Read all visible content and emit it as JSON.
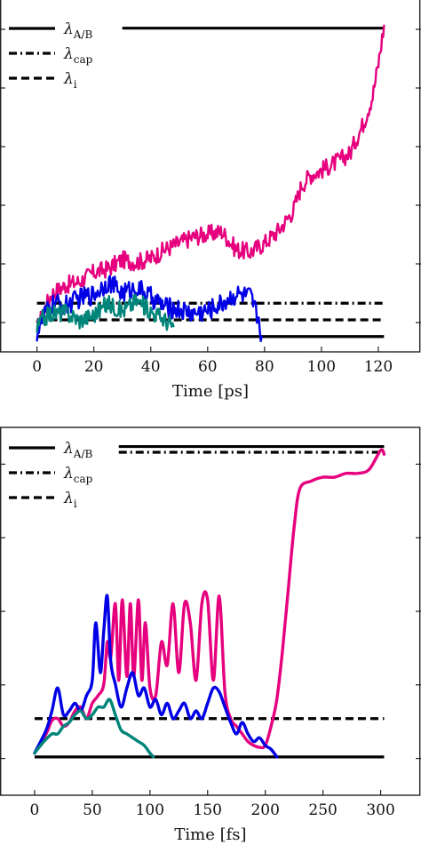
{
  "chart_data": [
    {
      "type": "line",
      "xlabel": "Time [ps]",
      "ylabel": "",
      "xlim": [
        -13,
        135
      ],
      "ylim": [
        0,
        27.5
      ],
      "xticks": [
        0,
        20,
        40,
        60,
        80,
        100,
        120
      ],
      "xtick_labels": [
        "0",
        "20",
        "40",
        "60",
        "80",
        "100",
        "120"
      ],
      "ytick_count": 6,
      "legend": {
        "position": "top-left",
        "entries": [
          {
            "symbol": "λ",
            "sub": "A/B",
            "style": "solid"
          },
          {
            "symbol": "λ",
            "sub": "cap",
            "style": "dashdot"
          },
          {
            "symbol": "λ",
            "sub": "i",
            "style": "dashed"
          }
        ]
      },
      "reference_lines": [
        {
          "legend_index": 0,
          "style": "solid",
          "color": "#000000",
          "segments": [
            [
              0,
              1.2,
              122,
              1.2
            ],
            [
              30,
              25.3,
              122,
              25.3
            ]
          ]
        },
        {
          "legend_index": 1,
          "style": "dashdot",
          "color": "#000000",
          "segments": [
            [
              0,
              3.8,
              122,
              3.8
            ]
          ]
        },
        {
          "legend_index": 2,
          "style": "dashed",
          "color": "#000000",
          "segments": [
            [
              0,
              2.5,
              122,
              2.5
            ]
          ]
        }
      ],
      "series": [
        {
          "color": "#e6007e",
          "noise": 0.7,
          "x": [
            0,
            3,
            5,
            10,
            15,
            20,
            25,
            30,
            35,
            40,
            45,
            50,
            55,
            60,
            65,
            70,
            75,
            80,
            85,
            90,
            93,
            96,
            100,
            105,
            110,
            115,
            118,
            120,
            122
          ],
          "y": [
            1.8,
            3.5,
            4.5,
            5.2,
            5.5,
            6.2,
            6.5,
            7.2,
            7.0,
            7.3,
            8.0,
            8.5,
            9.0,
            9.2,
            9.4,
            8.0,
            7.8,
            8.5,
            9.5,
            11.0,
            13.0,
            13.8,
            14.2,
            14.8,
            15.5,
            18.0,
            20.0,
            22.5,
            25.5
          ]
        },
        {
          "color": "#0000e6",
          "noise": 0.8,
          "x": [
            0,
            3,
            6,
            10,
            15,
            20,
            25,
            30,
            35,
            40,
            45,
            50,
            55,
            60,
            65,
            70,
            75,
            78,
            79
          ],
          "y": [
            1.5,
            3.0,
            3.8,
            3.6,
            4.2,
            4.5,
            5.5,
            4.6,
            5.0,
            4.3,
            3.5,
            3.3,
            3.0,
            3.2,
            3.8,
            4.5,
            4.3,
            2.5,
            1.2
          ]
        },
        {
          "color": "#00857a",
          "noise": 0.7,
          "x": [
            0,
            2,
            5,
            10,
            15,
            20,
            25,
            30,
            35,
            40,
            45,
            48
          ],
          "y": [
            1.8,
            2.6,
            3.0,
            3.1,
            2.5,
            2.9,
            3.8,
            3.2,
            4.0,
            3.2,
            2.5,
            2.0
          ]
        }
      ]
    },
    {
      "type": "line",
      "xlabel": "Time [fs]",
      "ylabel": "",
      "xlim": [
        -30,
        335
      ],
      "ylim": [
        -1.0,
        8.6
      ],
      "xticks": [
        0,
        50,
        100,
        150,
        200,
        250,
        300
      ],
      "xtick_labels": [
        "0",
        "50",
        "100",
        "150",
        "200",
        "250",
        "300"
      ],
      "ytick_count": 5,
      "legend": {
        "position": "top-left",
        "entries": [
          {
            "symbol": "λ",
            "sub": "A/B",
            "style": "solid"
          },
          {
            "symbol": "λ",
            "sub": "cap",
            "style": "dashdot"
          },
          {
            "symbol": "λ",
            "sub": "i",
            "style": "dashed"
          }
        ]
      },
      "reference_lines": [
        {
          "legend_index": 0,
          "style": "solid",
          "color": "#000000",
          "segments": [
            [
              0,
              0,
              303,
              0
            ],
            [
              73,
              8.1,
              303,
              8.1
            ]
          ]
        },
        {
          "legend_index": 1,
          "style": "dashdot",
          "color": "#000000",
          "segments": [
            [
              73,
              7.95,
              303,
              7.95
            ]
          ]
        },
        {
          "legend_index": 2,
          "style": "dashed",
          "color": "#000000",
          "segments": [
            [
              0,
              1.0,
              303,
              1.0
            ]
          ]
        }
      ],
      "series": [
        {
          "color": "#e6007e",
          "noise": 0,
          "x": [
            0,
            10,
            15,
            20,
            25,
            30,
            35,
            40,
            45,
            50,
            55,
            60,
            63,
            66,
            70,
            73,
            76,
            80,
            83,
            86,
            90,
            93,
            96,
            100,
            105,
            110,
            115,
            120,
            125,
            130,
            135,
            140,
            145,
            150,
            155,
            160,
            165,
            170,
            175,
            180,
            185,
            190,
            195,
            200,
            205,
            210,
            215,
            220,
            225,
            230,
            240,
            250,
            260,
            270,
            280,
            290,
            300,
            303
          ],
          "y": [
            0.1,
            0.6,
            0.95,
            1.0,
            0.8,
            0.9,
            1.2,
            1.3,
            1.0,
            1.4,
            1.6,
            1.9,
            3.0,
            2.6,
            4.0,
            2.0,
            4.1,
            2.1,
            4.0,
            2.1,
            4.1,
            2.0,
            3.5,
            1.8,
            1.6,
            3.0,
            2.4,
            4.0,
            2.2,
            4.0,
            3.5,
            2.0,
            4.0,
            4.1,
            2.0,
            4.2,
            1.7,
            1.0,
            0.8,
            0.6,
            0.4,
            0.3,
            0.25,
            0.3,
            0.8,
            1.5,
            2.8,
            4.4,
            6.0,
            7.0,
            7.2,
            7.3,
            7.3,
            7.4,
            7.4,
            7.5,
            8.0,
            7.9
          ]
        },
        {
          "color": "#0000e6",
          "noise": 0,
          "x": [
            0,
            10,
            15,
            20,
            25,
            30,
            35,
            40,
            45,
            50,
            53,
            57,
            60,
            63,
            66,
            70,
            75,
            80,
            85,
            90,
            95,
            100,
            105,
            110,
            115,
            120,
            125,
            130,
            135,
            140,
            145,
            150,
            155,
            160,
            165,
            170,
            175,
            180,
            185,
            190,
            195,
            200,
            205,
            210
          ],
          "y": [
            0.1,
            0.7,
            1.2,
            1.8,
            1.1,
            1.2,
            1.4,
            1.2,
            1.6,
            2.0,
            3.5,
            2.2,
            3.3,
            4.2,
            2.5,
            1.9,
            1.3,
            1.8,
            2.2,
            1.6,
            1.8,
            1.3,
            1.5,
            1.1,
            1.4,
            1.0,
            1.2,
            1.4,
            1.0,
            1.2,
            1.0,
            1.4,
            1.8,
            1.7,
            1.3,
            0.9,
            0.6,
            0.9,
            0.6,
            0.4,
            0.5,
            0.3,
            0.2,
            0.0
          ]
        },
        {
          "color": "#00857a",
          "noise": 0,
          "x": [
            0,
            8,
            15,
            20,
            25,
            30,
            35,
            40,
            45,
            50,
            55,
            60,
            65,
            70,
            75,
            80,
            85,
            90,
            95,
            100,
            103
          ],
          "y": [
            0.1,
            0.4,
            0.6,
            0.6,
            0.8,
            0.9,
            1.1,
            1.2,
            1.0,
            1.1,
            1.3,
            1.3,
            1.5,
            1.1,
            0.7,
            0.6,
            0.5,
            0.4,
            0.3,
            0.1,
            0.0
          ]
        }
      ]
    }
  ]
}
